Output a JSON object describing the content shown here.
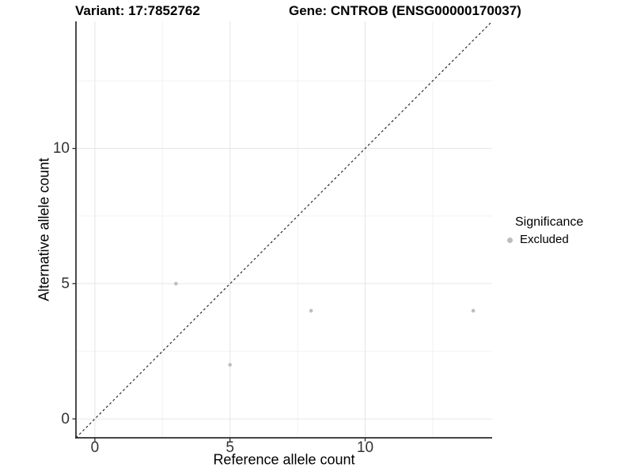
{
  "chart_data": {
    "type": "scatter",
    "title_left": "Variant: 17:7852762",
    "title_right": "Gene: CNTROB (ENSG00000170037)",
    "xlabel": "Reference allele count",
    "ylabel": "Alternative allele count",
    "xlim": [
      -0.7,
      14.7
    ],
    "ylim": [
      -0.7,
      14.7
    ],
    "x_ticks": [
      0,
      5,
      10
    ],
    "y_ticks": [
      0,
      5,
      10
    ],
    "x_minor_gridlines": [
      2.5,
      7.5,
      12.5
    ],
    "y_minor_gridlines": [
      2.5,
      7.5,
      12.5
    ],
    "grid": "major+minor",
    "series": [
      {
        "name": "Excluded",
        "color": "#bdbdbd",
        "points": [
          [
            3,
            5
          ],
          [
            5,
            2
          ],
          [
            8,
            4
          ],
          [
            14,
            4
          ]
        ]
      }
    ],
    "reference_line": {
      "kind": "identity y=x",
      "style": "dashed",
      "color": "#1a1a1a"
    },
    "legend": {
      "position": "right",
      "title": "Significance",
      "items": [
        {
          "label": "Excluded",
          "color": "#bdbdbd"
        }
      ]
    },
    "colors": {
      "background": "#ffffff",
      "grid_major": "#e6e6e6",
      "grid_minor": "#f2f2f2",
      "axis": "#2b2b2b",
      "tick_text": "#333333"
    }
  }
}
